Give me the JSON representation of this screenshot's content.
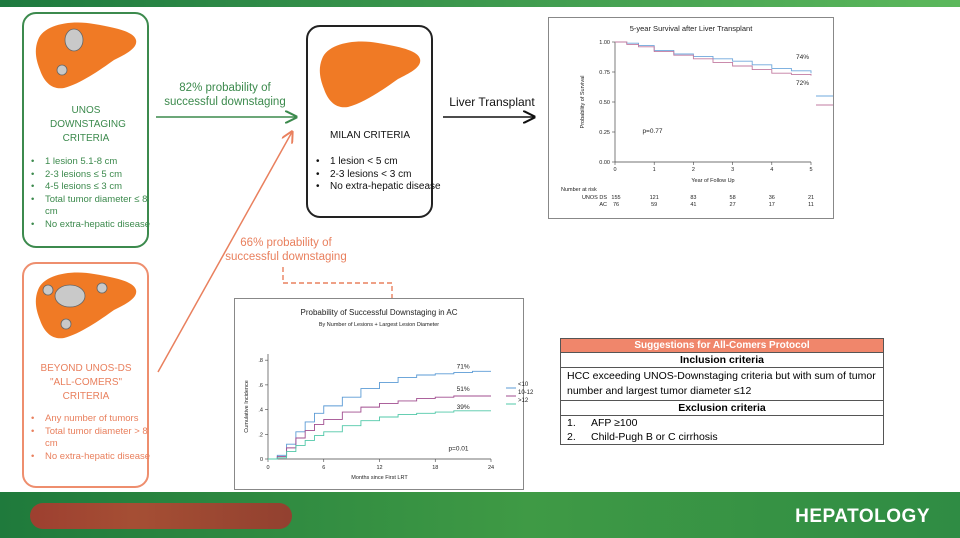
{
  "footer": {
    "brand": "HEPATOLOGY"
  },
  "unos": {
    "title": "UNOS DOWNSTAGING CRITERIA",
    "criteria": [
      "1 lesion 5.1-8 cm",
      "2-3 lesions ≤ 5 cm",
      "4-5 lesions ≤ 3 cm",
      "Total tumor diameter ≤ 8 cm",
      "No extra-hepatic disease"
    ]
  },
  "beyond": {
    "title": "BEYOND UNOS-DS \"ALL-COMERS\" CRITERIA",
    "criteria": [
      "Any number of tumors",
      "Total tumor diameter > 8 cm",
      "No extra-hepatic disease"
    ]
  },
  "milan": {
    "title": "MILAN CRITERIA",
    "criteria": [
      "1 lesion < 5 cm",
      "2-3 lesions < 3 cm",
      "No extra-hepatic disease"
    ]
  },
  "arrows": {
    "green_label": "82% probability of successful downstaging",
    "orange_label": "66% probability of successful downstaging",
    "transplant_label": "Liver Transplant"
  },
  "colors": {
    "green": "#3c8a4d",
    "orange": "#e9805e",
    "liver": "#f07a25",
    "lesion": "#c9c9c9"
  },
  "chart_data": [
    {
      "type": "line",
      "title": "5-year Survival after Liver Transplant",
      "xlabel": "Year of Follow Up",
      "ylabel": "Probability of Survival",
      "xlim": [
        0,
        5
      ],
      "ylim": [
        0,
        1
      ],
      "xticks": [
        "0",
        "1",
        "2",
        "3",
        "4",
        "5"
      ],
      "yticks": [
        "0.00",
        "0.25",
        "0.50",
        "0.75",
        "1.00"
      ],
      "series": [
        {
          "name": "UNOS DS",
          "color": "#6fa8dc",
          "x": [
            0,
            0.3,
            0.6,
            1,
            1.5,
            2,
            2.5,
            3,
            3.5,
            4,
            4.5,
            5
          ],
          "y": [
            1,
            0.99,
            0.97,
            0.93,
            0.9,
            0.88,
            0.86,
            0.84,
            0.81,
            0.78,
            0.76,
            0.74
          ]
        },
        {
          "name": "AC",
          "color": "#c27ba0",
          "x": [
            0,
            0.3,
            0.6,
            1,
            1.5,
            2,
            2.5,
            3,
            3.5,
            4,
            4.5,
            5
          ],
          "y": [
            1,
            0.98,
            0.96,
            0.92,
            0.89,
            0.86,
            0.83,
            0.8,
            0.77,
            0.74,
            0.73,
            0.72
          ]
        }
      ],
      "annotations": [
        "74%",
        "72%",
        "p=0.77"
      ],
      "risk_table": {
        "header": "Number at risk",
        "rows": [
          {
            "label": "UNOS DS",
            "values": [
              "155",
              "121",
              "83",
              "58",
              "36",
              "21"
            ]
          },
          {
            "label": "AC",
            "values": [
              "76",
              "59",
              "41",
              "27",
              "17",
              "11"
            ]
          }
        ]
      }
    },
    {
      "type": "line",
      "title": "Probability of Successful Downstaging in AC",
      "subtitle": "By Number of Lesions + Largest Lesion Diameter",
      "xlabel": "Months since First LRT",
      "ylabel": "Cumulative Incidence",
      "xlim": [
        0,
        24
      ],
      "ylim": [
        0,
        0.85
      ],
      "xticks": [
        "0",
        "6",
        "12",
        "18",
        "24"
      ],
      "yticks": [
        "0",
        ".2",
        ".4",
        ".6",
        ".8"
      ],
      "series": [
        {
          "name": "<10",
          "color": "#5b9bd5",
          "x": [
            0,
            1,
            2,
            3,
            4,
            5,
            6,
            8,
            10,
            12,
            14,
            16,
            18,
            20,
            22,
            24
          ],
          "y": [
            0,
            0.03,
            0.12,
            0.22,
            0.3,
            0.37,
            0.43,
            0.5,
            0.57,
            0.62,
            0.66,
            0.68,
            0.69,
            0.7,
            0.71,
            0.71
          ]
        },
        {
          "name": "10-12",
          "color": "#a04c8f",
          "x": [
            0,
            1,
            2,
            3,
            4,
            5,
            6,
            8,
            10,
            12,
            14,
            16,
            18,
            20,
            22,
            24
          ],
          "y": [
            0,
            0.02,
            0.09,
            0.17,
            0.23,
            0.28,
            0.32,
            0.38,
            0.42,
            0.45,
            0.47,
            0.49,
            0.5,
            0.51,
            0.51,
            0.51
          ]
        },
        {
          "name": ">12",
          "color": "#50c8a8",
          "x": [
            0,
            1,
            2,
            3,
            4,
            5,
            6,
            8,
            10,
            12,
            14,
            16,
            18,
            20,
            22,
            24
          ],
          "y": [
            0,
            0.01,
            0.06,
            0.11,
            0.15,
            0.19,
            0.22,
            0.27,
            0.31,
            0.34,
            0.36,
            0.37,
            0.38,
            0.39,
            0.39,
            0.39
          ]
        }
      ],
      "annotations": [
        "71%",
        "51%",
        "39%",
        "p=0.01"
      ]
    }
  ],
  "suggestions": {
    "header": "Suggestions for All-Comers Protocol",
    "inclusion_title": "Inclusion criteria",
    "inclusion_text": "HCC exceeding UNOS-Downstaging criteria but with sum of tumor number and largest tumor diameter ≤12",
    "exclusion_title": "Exclusion criteria",
    "exclusions": [
      {
        "num": "1.",
        "text": "AFP ≥100"
      },
      {
        "num": "2.",
        "text": "Child-Pugh B or C cirrhosis"
      }
    ]
  }
}
